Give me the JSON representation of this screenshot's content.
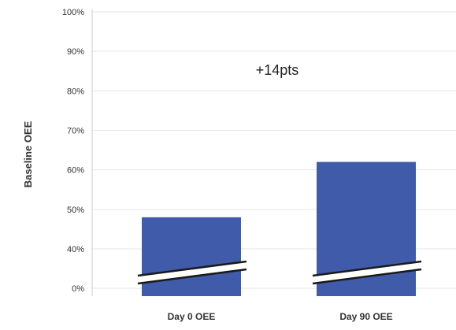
{
  "chart_data": {
    "type": "bar",
    "categories": [
      "Day 0 OEE",
      "Day 90 OEE"
    ],
    "values": [
      48,
      62
    ],
    "ylabel": "Baseline OEE",
    "y_ticks": [
      "0%",
      "40%",
      "50%",
      "60%",
      "70%",
      "80%",
      "90%",
      "100%"
    ],
    "y_tick_values": [
      0,
      40,
      50,
      60,
      70,
      80,
      90,
      100
    ],
    "ylim": [
      0,
      100
    ],
    "axis_break": "between 0% and 40%",
    "annotation": "+14pts",
    "grid": true,
    "colors": {
      "bar": "#3f5ba9",
      "grid": "#e6e6e6",
      "axis": "#cccccc"
    }
  }
}
